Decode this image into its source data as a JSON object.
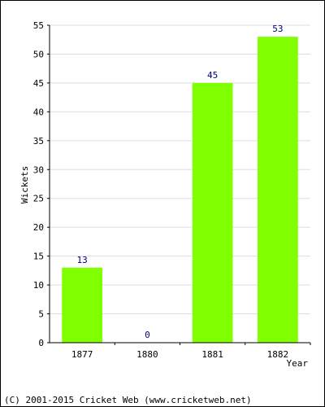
{
  "footer": {
    "copyright": "(C) 2001-2015 Cricket Web (www.cricketweb.net)"
  },
  "colors": {
    "bar": "#80ff00",
    "value_label": "#000080",
    "grid": "#dddddd",
    "axis": "#000000",
    "text": "#000000"
  },
  "chart_data": {
    "type": "bar",
    "title": "",
    "xlabel": "Year",
    "ylabel": "Wickets",
    "categories": [
      "1877",
      "1880",
      "1881",
      "1882"
    ],
    "values": [
      13,
      0,
      45,
      53
    ],
    "data_labels": [
      "13",
      "0",
      "45",
      "53"
    ],
    "ylim": [
      0,
      55
    ],
    "yticks": [
      0,
      5,
      10,
      15,
      20,
      25,
      30,
      35,
      40,
      45,
      50,
      55
    ],
    "grid": true,
    "legend": "none"
  }
}
